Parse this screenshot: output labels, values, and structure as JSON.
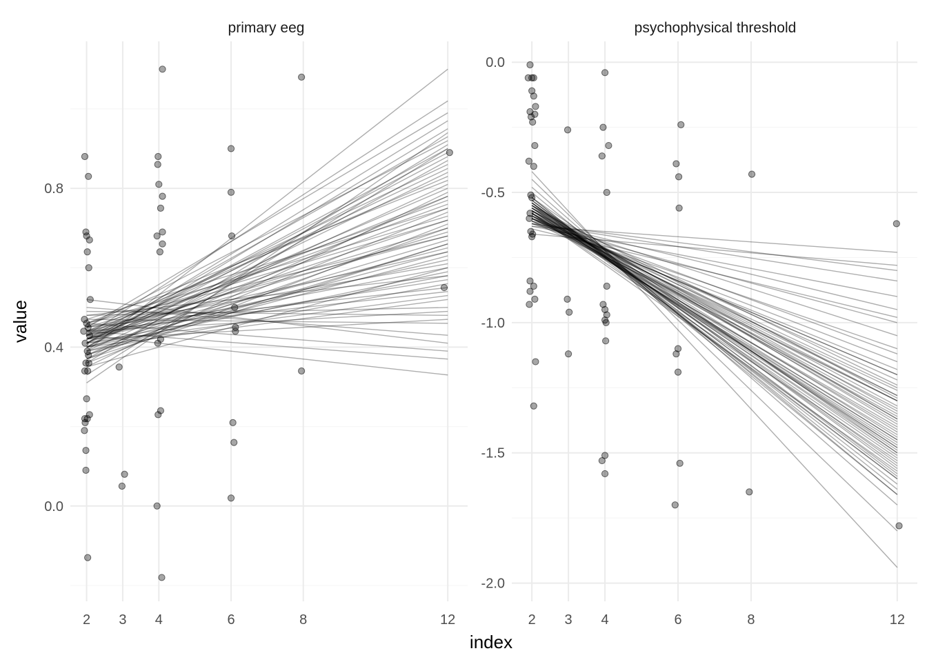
{
  "chart_data": {
    "type": "scatter",
    "xlabel": "index",
    "ylabel": "value",
    "style": {
      "point_color": "#000000",
      "point_opacity": 0.35,
      "line_color": "#000000",
      "line_opacity": 0.32,
      "grid_color": "#ebebeb"
    },
    "panels": [
      {
        "title": "primary eeg",
        "xticks": [
          2,
          3,
          4,
          6,
          8,
          12
        ],
        "yticks": [
          0.0,
          0.4,
          0.8
        ],
        "ytick_labels": [
          "0.0",
          "0.4",
          "0.8"
        ],
        "xlim": [
          1.55,
          12.55
        ],
        "ylim": [
          -0.24,
          1.17
        ],
        "points": [
          [
            1.95,
            0.88
          ],
          [
            2.05,
            0.83
          ],
          [
            1.98,
            0.69
          ],
          [
            2.0,
            0.68
          ],
          [
            2.08,
            0.67
          ],
          [
            2.02,
            0.64
          ],
          [
            2.06,
            0.6
          ],
          [
            2.1,
            0.52
          ],
          [
            1.94,
            0.47
          ],
          [
            2.0,
            0.46
          ],
          [
            2.04,
            0.45
          ],
          [
            1.92,
            0.44
          ],
          [
            2.08,
            0.43
          ],
          [
            1.96,
            0.41
          ],
          [
            2.02,
            0.39
          ],
          [
            2.05,
            0.38
          ],
          [
            1.98,
            0.36
          ],
          [
            2.06,
            0.36
          ],
          [
            2.03,
            0.34
          ],
          [
            1.95,
            0.34
          ],
          [
            2.0,
            0.27
          ],
          [
            2.08,
            0.23
          ],
          [
            1.95,
            0.22
          ],
          [
            2.02,
            0.22
          ],
          [
            1.96,
            0.21
          ],
          [
            1.94,
            0.19
          ],
          [
            1.98,
            0.14
          ],
          [
            1.98,
            0.09
          ],
          [
            2.03,
            -0.13
          ],
          [
            2.9,
            0.35
          ],
          [
            2.98,
            0.05
          ],
          [
            3.05,
            0.08
          ],
          [
            4.1,
            1.1
          ],
          [
            3.98,
            0.88
          ],
          [
            3.97,
            0.86
          ],
          [
            4.0,
            0.81
          ],
          [
            4.1,
            0.78
          ],
          [
            4.05,
            0.75
          ],
          [
            4.1,
            0.69
          ],
          [
            3.95,
            0.68
          ],
          [
            4.1,
            0.66
          ],
          [
            4.03,
            0.64
          ],
          [
            3.97,
            0.41
          ],
          [
            4.05,
            0.42
          ],
          [
            4.05,
            0.24
          ],
          [
            3.98,
            0.23
          ],
          [
            3.95,
            0.0
          ],
          [
            4.08,
            -0.18
          ],
          [
            6.0,
            0.9
          ],
          [
            6.0,
            0.79
          ],
          [
            6.02,
            0.68
          ],
          [
            6.1,
            0.5
          ],
          [
            6.12,
            0.45
          ],
          [
            6.12,
            0.44
          ],
          [
            6.05,
            0.21
          ],
          [
            6.08,
            0.16
          ],
          [
            6.0,
            0.02
          ],
          [
            7.95,
            1.08
          ],
          [
            7.95,
            0.34
          ],
          [
            12.05,
            0.89
          ],
          [
            11.9,
            0.55
          ]
        ],
        "lines": [
          [
            0.42,
            0.72
          ],
          [
            0.44,
            0.68
          ],
          [
            0.41,
            0.9
          ],
          [
            0.43,
            0.33
          ],
          [
            0.46,
            0.39
          ],
          [
            0.38,
            0.78
          ],
          [
            0.4,
            0.95
          ],
          [
            0.45,
            0.55
          ],
          [
            0.35,
            0.6
          ],
          [
            0.47,
            0.46
          ],
          [
            0.42,
            0.62
          ],
          [
            0.39,
            1.1
          ],
          [
            0.44,
            0.83
          ],
          [
            0.41,
            0.58
          ],
          [
            0.43,
            0.76
          ],
          [
            0.37,
            0.87
          ],
          [
            0.48,
            0.5
          ],
          [
            0.4,
            0.67
          ],
          [
            0.45,
            0.92
          ],
          [
            0.42,
            0.47
          ],
          [
            0.36,
            0.71
          ],
          [
            0.44,
            0.64
          ],
          [
            0.41,
            0.8
          ],
          [
            0.39,
            0.56
          ],
          [
            0.43,
            1.02
          ],
          [
            0.46,
            0.73
          ],
          [
            0.4,
            0.52
          ],
          [
            0.42,
            0.85
          ],
          [
            0.38,
            0.66
          ],
          [
            0.45,
            0.61
          ],
          [
            0.41,
            0.97
          ],
          [
            0.44,
            0.37
          ],
          [
            0.37,
            0.74
          ],
          [
            0.42,
            0.69
          ],
          [
            0.4,
            0.88
          ],
          [
            0.43,
            0.57
          ],
          [
            0.46,
            0.82
          ],
          [
            0.39,
            0.63
          ],
          [
            0.41,
            0.75
          ],
          [
            0.44,
            0.49
          ],
          [
            0.35,
            0.79
          ],
          [
            0.42,
            0.65
          ],
          [
            0.45,
            0.99
          ],
          [
            0.4,
            0.59
          ],
          [
            0.43,
            0.86
          ],
          [
            0.38,
            0.7
          ],
          [
            0.41,
            0.53
          ],
          [
            0.44,
            0.77
          ],
          [
            0.42,
            0.93
          ],
          [
            0.4,
            0.64
          ],
          [
            0.46,
            0.68
          ],
          [
            0.39,
            0.81
          ],
          [
            0.43,
            0.6
          ],
          [
            0.41,
            0.89
          ],
          [
            0.45,
            0.72
          ],
          [
            0.37,
            0.66
          ],
          [
            0.42,
            0.78
          ],
          [
            0.44,
            0.54
          ],
          [
            0.4,
            0.84
          ],
          [
            0.43,
            0.7
          ],
          [
            0.52,
            0.41
          ],
          [
            0.5,
            0.43
          ],
          [
            0.49,
            0.48
          ],
          [
            0.31,
            0.94
          ],
          [
            0.33,
            0.9
          ],
          [
            0.47,
            0.75
          ],
          [
            0.36,
            0.91
          ],
          [
            0.48,
            0.58
          ]
        ]
      },
      {
        "title": "psychophysical threshold",
        "xticks": [
          2,
          3,
          4,
          6,
          8,
          12
        ],
        "yticks": [
          0.0,
          -0.5,
          -1.0,
          -1.5,
          -2.0
        ],
        "ytick_labels": [
          "0.0",
          "-0.5",
          "-1.0",
          "-1.5",
          "-2.0"
        ],
        "xlim": [
          1.45,
          12.55
        ],
        "ylim": [
          -2.07,
          0.08
        ],
        "points": [
          [
            1.95,
            -0.01
          ],
          [
            1.9,
            -0.06
          ],
          [
            2.0,
            -0.06
          ],
          [
            2.05,
            -0.06
          ],
          [
            2.0,
            -0.11
          ],
          [
            2.05,
            -0.13
          ],
          [
            2.1,
            -0.17
          ],
          [
            1.95,
            -0.19
          ],
          [
            2.08,
            -0.2
          ],
          [
            1.98,
            -0.21
          ],
          [
            2.02,
            -0.23
          ],
          [
            2.08,
            -0.32
          ],
          [
            1.92,
            -0.38
          ],
          [
            2.05,
            -0.4
          ],
          [
            1.97,
            -0.51
          ],
          [
            2.0,
            -0.52
          ],
          [
            1.95,
            -0.58
          ],
          [
            1.93,
            -0.6
          ],
          [
            1.97,
            -0.65
          ],
          [
            2.02,
            -0.66
          ],
          [
            2.0,
            -0.67
          ],
          [
            1.95,
            -0.84
          ],
          [
            2.05,
            -0.86
          ],
          [
            1.95,
            -0.88
          ],
          [
            2.08,
            -0.91
          ],
          [
            1.93,
            -0.93
          ],
          [
            2.1,
            -1.15
          ],
          [
            2.05,
            -1.32
          ],
          [
            2.98,
            -0.26
          ],
          [
            2.97,
            -0.91
          ],
          [
            3.02,
            -0.96
          ],
          [
            3.0,
            -1.12
          ],
          [
            4.0,
            -0.04
          ],
          [
            3.95,
            -0.25
          ],
          [
            4.1,
            -0.32
          ],
          [
            3.92,
            -0.36
          ],
          [
            4.05,
            -0.5
          ],
          [
            3.95,
            -0.93
          ],
          [
            4.0,
            -0.95
          ],
          [
            4.05,
            -0.97
          ],
          [
            4.0,
            -0.99
          ],
          [
            4.03,
            -1.0
          ],
          [
            4.02,
            -1.07
          ],
          [
            4.0,
            -1.51
          ],
          [
            3.92,
            -1.53
          ],
          [
            4.0,
            -1.58
          ],
          [
            4.05,
            -0.86
          ],
          [
            5.95,
            -0.39
          ],
          [
            6.02,
            -0.44
          ],
          [
            6.03,
            -0.56
          ],
          [
            6.08,
            -0.24
          ],
          [
            5.95,
            -1.12
          ],
          [
            6.0,
            -1.1
          ],
          [
            6.0,
            -1.19
          ],
          [
            6.05,
            -1.54
          ],
          [
            5.92,
            -1.7
          ],
          [
            8.02,
            -0.43
          ],
          [
            7.95,
            -1.65
          ],
          [
            11.98,
            -0.62
          ],
          [
            12.05,
            -1.78
          ]
        ],
        "lines": [
          [
            -0.58,
            -1.45
          ],
          [
            -0.55,
            -1.6
          ],
          [
            -0.6,
            -1.3
          ],
          [
            -0.52,
            -1.5
          ],
          [
            -0.62,
            -1.1
          ],
          [
            -0.57,
            -1.38
          ],
          [
            -0.54,
            -1.55
          ],
          [
            -0.59,
            -1.25
          ],
          [
            -0.61,
            -0.95
          ],
          [
            -0.56,
            -1.42
          ],
          [
            -0.53,
            -1.62
          ],
          [
            -0.6,
            -1.2
          ],
          [
            -0.58,
            -1.35
          ],
          [
            -0.55,
            -1.48
          ],
          [
            -0.57,
            -1.28
          ],
          [
            -0.62,
            -0.8
          ],
          [
            -0.52,
            -1.66
          ],
          [
            -0.59,
            -1.4
          ],
          [
            -0.56,
            -1.52
          ],
          [
            -0.61,
            -1.15
          ],
          [
            -0.54,
            -1.58
          ],
          [
            -0.58,
            -1.3
          ],
          [
            -0.6,
            -1.05
          ],
          [
            -0.57,
            -1.45
          ],
          [
            -0.55,
            -1.37
          ],
          [
            -0.63,
            -0.73
          ],
          [
            -0.53,
            -1.56
          ],
          [
            -0.59,
            -1.22
          ],
          [
            -0.56,
            -1.5
          ],
          [
            -0.6,
            -1.33
          ],
          [
            -0.58,
            -1.41
          ],
          [
            -0.54,
            -1.6
          ],
          [
            -0.62,
            -1.0
          ],
          [
            -0.57,
            -1.47
          ],
          [
            -0.55,
            -1.29
          ],
          [
            -0.61,
            -1.18
          ],
          [
            -0.52,
            -1.64
          ],
          [
            -0.59,
            -1.36
          ],
          [
            -0.56,
            -1.44
          ],
          [
            -0.6,
            -1.26
          ],
          [
            -0.58,
            -1.53
          ],
          [
            -0.55,
            -1.39
          ],
          [
            -0.63,
            -0.9
          ],
          [
            -0.57,
            -1.32
          ],
          [
            -0.54,
            -1.49
          ],
          [
            -0.6,
            -1.12
          ],
          [
            -0.58,
            -1.57
          ],
          [
            -0.56,
            -1.24
          ],
          [
            -0.59,
            -1.43
          ],
          [
            -0.61,
            -1.3
          ],
          [
            -0.55,
            -1.51
          ],
          [
            -0.57,
            -1.37
          ],
          [
            -0.53,
            -1.59
          ],
          [
            -0.6,
            -1.2
          ],
          [
            -0.58,
            -1.46
          ],
          [
            -0.56,
            -1.34
          ],
          [
            -0.62,
            -0.84
          ],
          [
            -0.54,
            -1.54
          ],
          [
            -0.59,
            -1.28
          ],
          [
            -0.57,
            -1.48
          ],
          [
            -0.42,
            -1.94
          ],
          [
            -0.45,
            -1.8
          ],
          [
            -0.64,
            -0.98
          ],
          [
            -0.66,
            -0.78
          ],
          [
            -0.48,
            -1.7
          ],
          [
            -0.5,
            -1.66
          ]
        ]
      }
    ]
  }
}
